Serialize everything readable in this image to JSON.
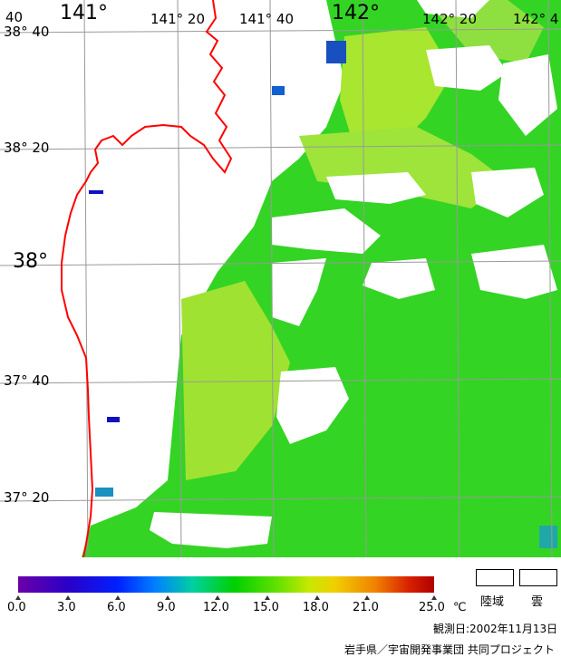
{
  "map": {
    "lat_labels": [
      "38° 40",
      "38° 20",
      "38°",
      "37° 40",
      "37° 20"
    ],
    "lon_labels": [
      "141°",
      "141° 20",
      "141° 40",
      "142°",
      "142° 20",
      "142° 4"
    ],
    "corner_label": "40",
    "colors": {
      "land": "#ffffff",
      "cloud": "#ffffff",
      "coastline": "#ff0000",
      "grid": "#999999",
      "sea_green": "#30d020",
      "sea_yellow": "#b0e830"
    }
  },
  "legend": {
    "ticks": [
      "0.0",
      "3.0",
      "6.0",
      "9.0",
      "12.0",
      "15.0",
      "18.0",
      "21.0",
      "25.0"
    ],
    "unit": "℃",
    "land_label": "陸域",
    "cloud_label": "雲"
  },
  "footer": {
    "date": "観測日:2002年11月13日",
    "credit": "岩手県／宇宙開発事業団 共同プロジェクト"
  }
}
